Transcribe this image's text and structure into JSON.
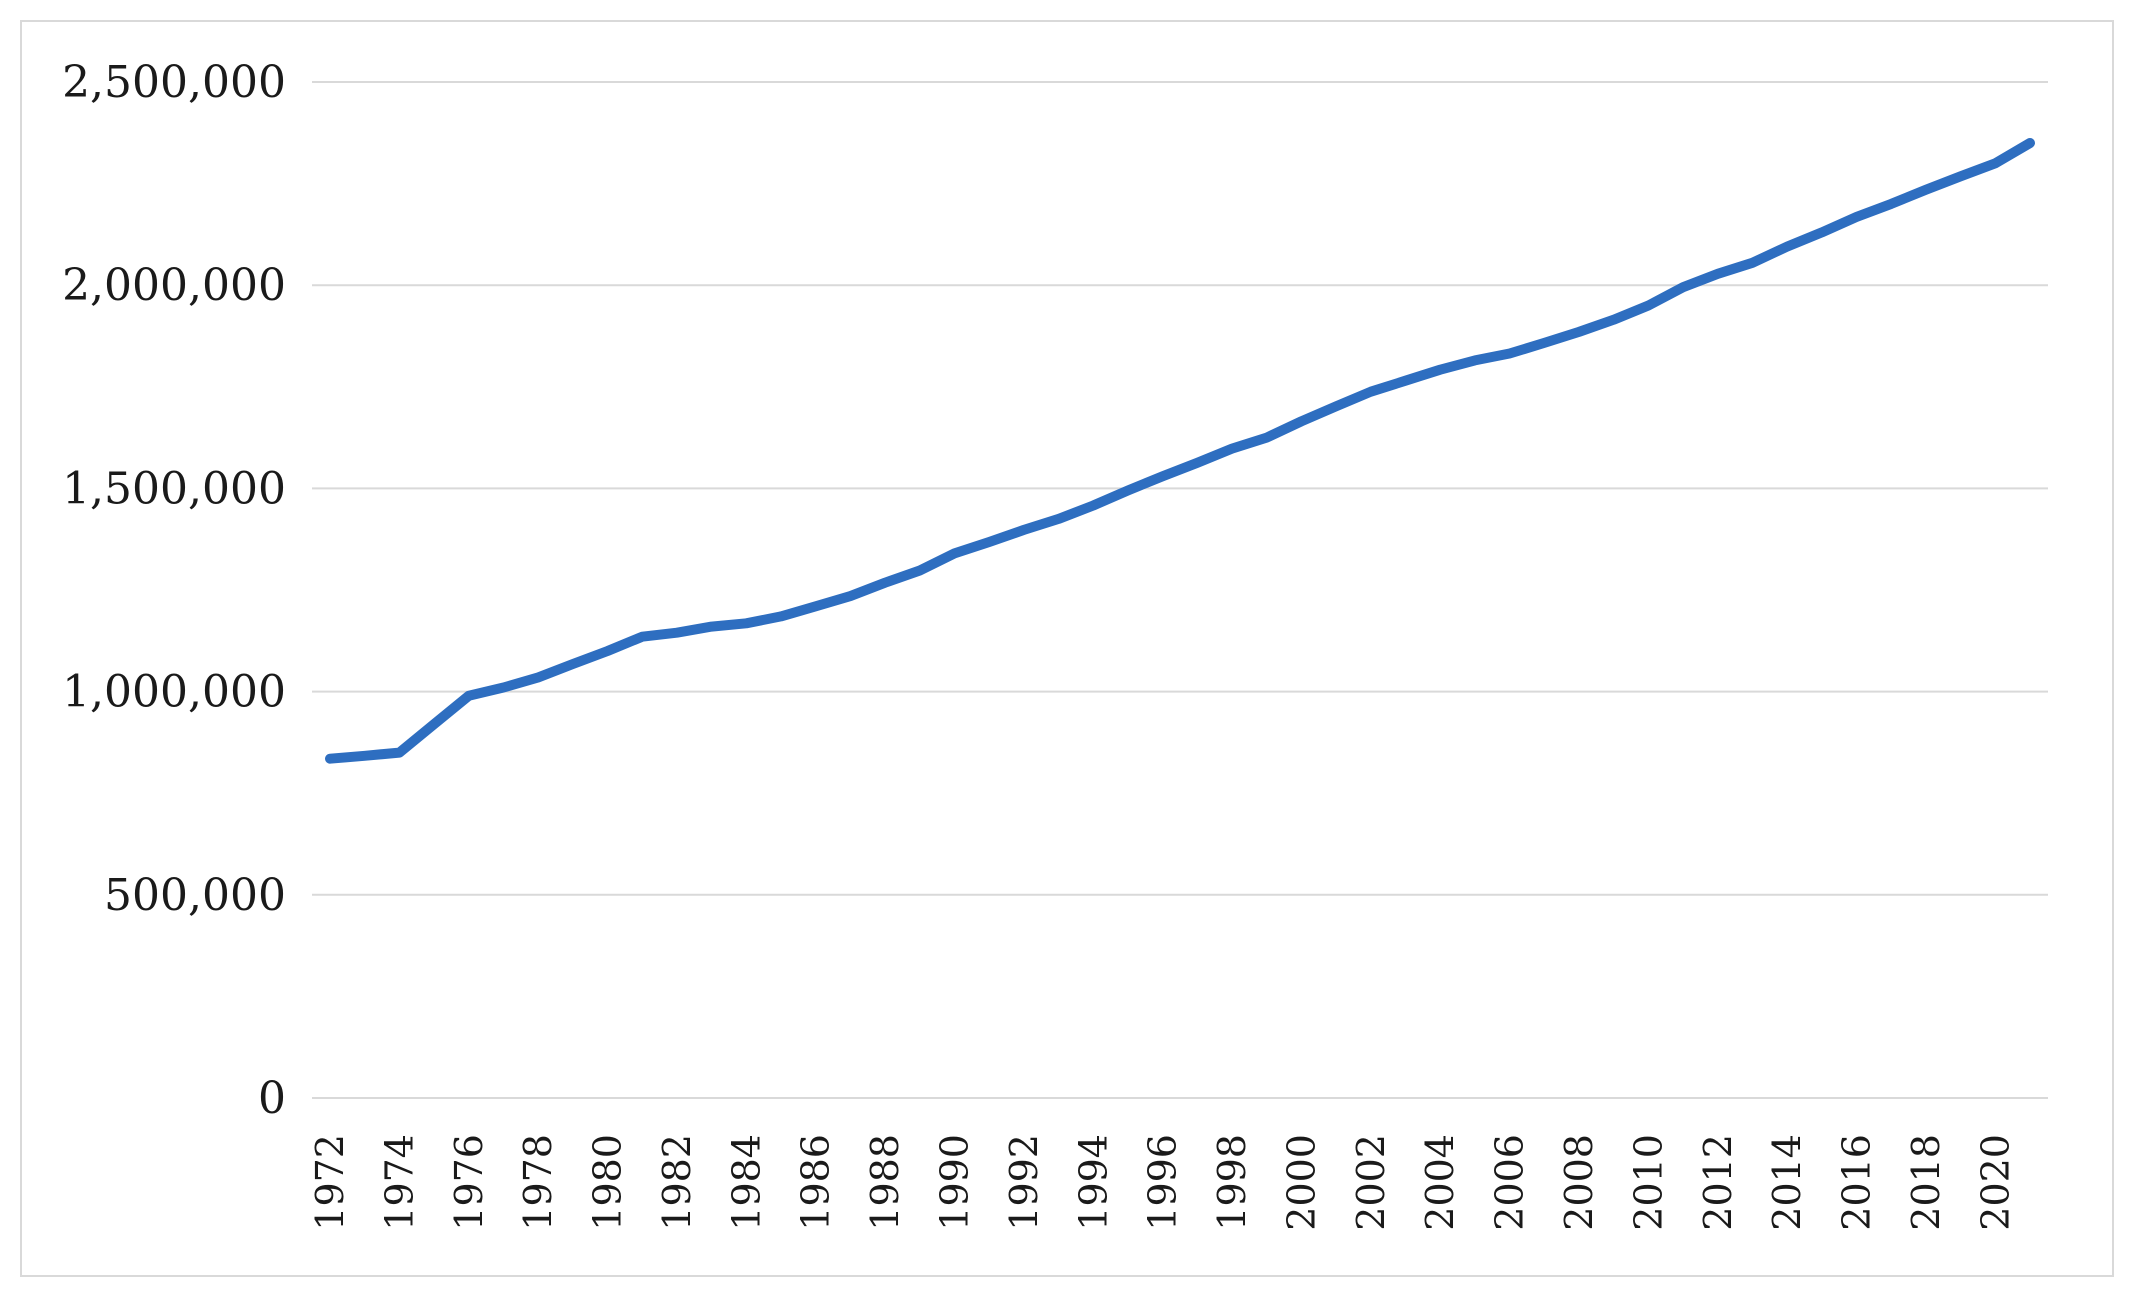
{
  "chart_data": {
    "type": "line",
    "title": "",
    "xlabel": "",
    "ylabel": "",
    "grid": true,
    "legend": "none",
    "xlim": [
      1972,
      2021
    ],
    "ylim": [
      0,
      2500000
    ],
    "y_ticks": [
      0,
      500000,
      1000000,
      1500000,
      2000000,
      2500000
    ],
    "y_tick_labels": [
      "0",
      "500,000",
      "1,000,000",
      "1,500,000",
      "2,000,000",
      "2,500,000"
    ],
    "x_tick_labels": [
      "1972",
      "1974",
      "1976",
      "1978",
      "1980",
      "1982",
      "1984",
      "1986",
      "1988",
      "1990",
      "1992",
      "1994",
      "1996",
      "1998",
      "2000",
      "2002",
      "2004",
      "2006",
      "2008",
      "2010",
      "2012",
      "2014",
      "2016",
      "2018",
      "2020"
    ],
    "series": [
      {
        "color": "#2e6ec0",
        "x": [
          1972,
          1973,
          1974,
          1975,
          1976,
          1977,
          1978,
          1979,
          1980,
          1981,
          1982,
          1983,
          1984,
          1985,
          1986,
          1987,
          1988,
          1989,
          1990,
          1991,
          1992,
          1993,
          1994,
          1995,
          1996,
          1997,
          1998,
          1999,
          2000,
          2001,
          2002,
          2003,
          2004,
          2005,
          2006,
          2007,
          2008,
          2009,
          2010,
          2011,
          2012,
          2013,
          2014,
          2015,
          2016,
          2017,
          2018,
          2019,
          2020,
          2021
        ],
        "values": [
          835000,
          842000,
          850000,
          920000,
          990000,
          1010000,
          1035000,
          1068000,
          1100000,
          1135000,
          1145000,
          1160000,
          1168000,
          1185000,
          1210000,
          1235000,
          1268000,
          1298000,
          1340000,
          1368000,
          1398000,
          1425000,
          1458000,
          1495000,
          1530000,
          1563000,
          1598000,
          1625000,
          1665000,
          1702000,
          1738000,
          1765000,
          1792000,
          1815000,
          1832000,
          1858000,
          1885000,
          1915000,
          1950000,
          1995000,
          2028000,
          2055000,
          2095000,
          2130000,
          2168000,
          2200000,
          2235000,
          2268000,
          2300000,
          2350000
        ]
      }
    ]
  }
}
